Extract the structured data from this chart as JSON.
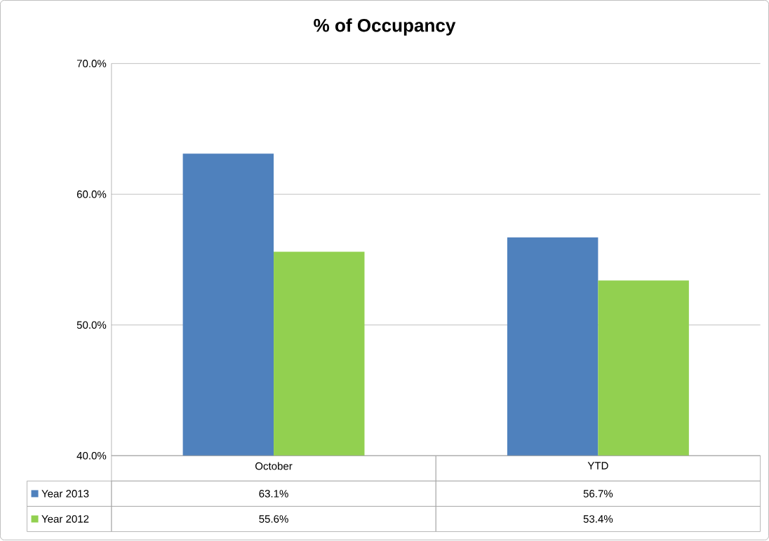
{
  "chart_data": {
    "type": "bar",
    "title": "% of Occupancy",
    "categories": [
      "October",
      "YTD"
    ],
    "series": [
      {
        "name": "Year 2013",
        "color": "#4f81bd",
        "values": [
          63.1,
          56.7
        ],
        "value_labels": [
          "63.1%",
          "56.7%"
        ]
      },
      {
        "name": "Year 2012",
        "color": "#92d050",
        "values": [
          55.6,
          53.4
        ],
        "value_labels": [
          "55.6%",
          "53.4%"
        ]
      }
    ],
    "ylim": [
      40,
      70
    ],
    "yticks": [
      {
        "value": 40,
        "label": "40.0%"
      },
      {
        "value": 50,
        "label": "50.0%"
      },
      {
        "value": 60,
        "label": "60.0%"
      },
      {
        "value": 70,
        "label": "70.0%"
      }
    ],
    "grid": "y",
    "legend": "bottom"
  }
}
